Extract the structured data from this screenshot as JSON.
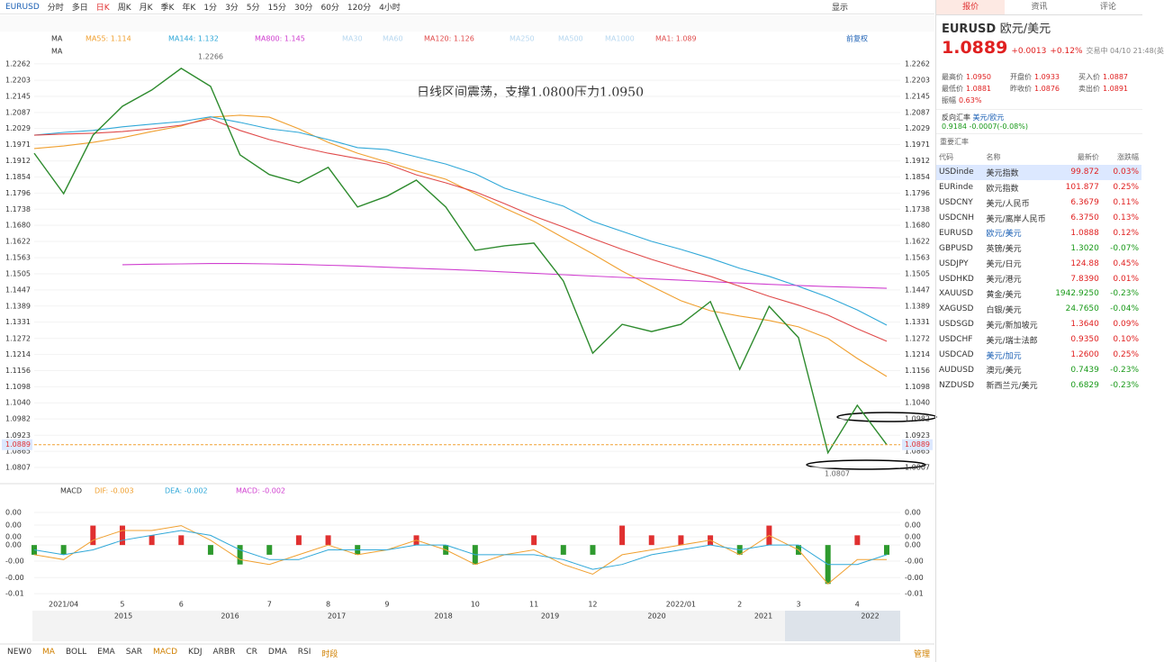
{
  "toolbar": {
    "symbol": "EURUSD",
    "periods": [
      "分时",
      "多日",
      "日K",
      "周K",
      "月K",
      "季K",
      "年K",
      "1分",
      "3分",
      "5分",
      "15分",
      "30分",
      "60分",
      "120分",
      "4小时"
    ],
    "display": "显示"
  },
  "chart_data": [
    {
      "type": "line",
      "indicator": "MA",
      "indicator2": "MA",
      "adjust": "前复权",
      "annotation": "日线区间震荡，支撑1.0800压力1.0950",
      "high_label": "1.2266",
      "low_label": "1.0807",
      "last_label": "1.0889",
      "inactive_legend": [
        "MA30",
        "MA60",
        "MA250",
        "MA500",
        "MA1000"
      ],
      "categories": [
        null,
        "2021/04",
        null,
        "5",
        null,
        "6",
        null,
        null,
        "7",
        null,
        "8",
        null,
        "9",
        null,
        null,
        "10",
        null,
        "11",
        null,
        "12",
        null,
        null,
        "2022/01",
        null,
        "2",
        null,
        "3",
        null,
        "4",
        null
      ],
      "ylim": [
        1.0755,
        1.2291
      ],
      "yticks": [
        1.2262,
        1.2203,
        1.2145,
        1.2087,
        1.2029,
        1.1971,
        1.1912,
        1.1854,
        1.1796,
        1.1738,
        {
          "value": 1.168,
          "label": "1.1680"
        },
        1.1622,
        1.1563,
        1.1505,
        1.1447,
        1.1389,
        1.1331,
        1.1272,
        1.1214,
        1.1156,
        1.1098,
        {
          "value": 1.104,
          "label": "1.1040"
        },
        1.0982,
        1.0923,
        1.0865,
        1.0807
      ],
      "series": [
        {
          "name": "MA1: 1.089",
          "color": "#2e8b2e",
          "values": [
            1.194,
            1.1794,
            1.2005,
            1.2109,
            1.2168,
            1.2246,
            1.2181,
            1.1934,
            1.1863,
            1.1833,
            1.1889,
            1.1746,
            1.1785,
            1.1843,
            1.1746,
            1.159,
            1.1606,
            1.1616,
            1.1479,
            1.1219,
            1.1323,
            1.1297,
            1.1323,
            1.1405,
            1.1161,
            1.1388,
            1.1275,
            1.086,
            1.1031,
            1.0889
          ]
        },
        {
          "name": "MA55: 1.114",
          "color": "#f0a030",
          "values": [
            1.1957,
            1.1966,
            1.1979,
            1.1996,
            1.2018,
            1.2038,
            1.207,
            1.2077,
            1.207,
            1.2028,
            1.1979,
            1.194,
            1.1908,
            1.1876,
            1.1846,
            1.1794,
            1.1742,
            1.1694,
            1.1635,
            1.1577,
            1.1515,
            1.146,
            1.1408,
            1.1372,
            1.1353,
            1.1337,
            1.1314,
            1.1272,
            1.12,
            1.1135
          ]
        },
        {
          "name": "MA144: 1.132",
          "color": "#30a8d8",
          "values": [
            1.2005,
            1.2015,
            1.2022,
            1.2035,
            1.2045,
            1.2054,
            1.2071,
            1.2051,
            1.2028,
            1.2015,
            1.1989,
            1.196,
            1.1953,
            1.1927,
            1.1901,
            1.1866,
            1.1814,
            1.1781,
            1.1749,
            1.1694,
            1.1658,
            1.1622,
            1.1593,
            1.1561,
            1.1525,
            1.1496,
            1.146,
            1.1421,
            1.1375,
            1.132
          ]
        },
        {
          "name": "MA800: 1.145",
          "color": "#d040d0",
          "values": [
            null,
            null,
            null,
            1.1538,
            1.154,
            1.1541,
            1.1542,
            1.1542,
            1.1541,
            1.1539,
            1.1536,
            1.1533,
            1.1529,
            1.1525,
            1.1521,
            1.1517,
            1.1512,
            1.1507,
            1.1502,
            1.1497,
            1.1492,
            1.1487,
            1.1482,
            1.1477,
            1.1472,
            1.1467,
            1.1463,
            1.1459,
            1.1456,
            1.1453
          ]
        },
        {
          "name": "MA120: 1.126",
          "color": "#e04a4a",
          "values": [
            1.2005,
            1.2009,
            1.2012,
            1.2018,
            1.2028,
            1.2041,
            1.2064,
            1.2022,
            1.1989,
            1.1963,
            1.194,
            1.1921,
            1.1901,
            1.1862,
            1.1833,
            1.1801,
            1.1758,
            1.1713,
            1.1674,
            1.1632,
            1.1593,
            1.1557,
            1.1525,
            1.1496,
            1.146,
            1.1424,
            1.1392,
            1.1356,
            1.1307,
            1.1262
          ]
        }
      ]
    },
    {
      "type": "combo",
      "indicator": "MACD",
      "ylim": [
        -0.0111,
        0.0093
      ],
      "yticks": [
        {
          "value": 0.0067,
          "label": "0.00"
        },
        {
          "value": 0.0041,
          "label": "0.00"
        },
        {
          "value": 0.0017,
          "label": "0.00"
        },
        {
          "value": 0,
          "label": "0.00"
        },
        {
          "value": -0.0033,
          "label": "-0.00"
        },
        {
          "value": -0.0067,
          "label": "-0.00"
        },
        {
          "value": -0.01,
          "label": "-0.01"
        }
      ],
      "series": [
        {
          "name": "DIF: -0.003",
          "kind": "line",
          "color": "#f0a030",
          "values": [
            -0.002,
            -0.003,
            0.001,
            0.003,
            0.003,
            0.004,
            0.001,
            -0.003,
            -0.004,
            -0.002,
            0,
            -0.002,
            -0.001,
            0.001,
            -0.001,
            -0.004,
            -0.002,
            -0.001,
            -0.004,
            -0.006,
            -0.002,
            -0.001,
            0,
            0.001,
            -0.002,
            0.002,
            -0.001,
            -0.008,
            -0.003,
            -0.003
          ]
        },
        {
          "name": "DEA: -0.002",
          "kind": "line",
          "color": "#30a8d8",
          "values": [
            -0.001,
            -0.002,
            -0.001,
            0.001,
            0.002,
            0.003,
            0.002,
            -0.001,
            -0.003,
            -0.003,
            -0.001,
            -0.001,
            -0.001,
            0,
            0,
            -0.002,
            -0.002,
            -0.002,
            -0.003,
            -0.005,
            -0.004,
            -0.002,
            -0.001,
            0,
            -0.001,
            0,
            0,
            -0.004,
            -0.004,
            -0.002
          ]
        },
        {
          "name": "MACD: -0.002",
          "kind": "bar",
          "color": "#d040d0",
          "up": "#e03030",
          "down": "#2e9a2e",
          "values": [
            -0.002,
            -0.002,
            0.004,
            0.004,
            0.002,
            0.002,
            -0.002,
            -0.004,
            -0.002,
            0.002,
            0.002,
            -0.002,
            0,
            0.002,
            -0.002,
            -0.004,
            0,
            0.002,
            -0.002,
            -0.002,
            0.004,
            0.002,
            0.002,
            0.002,
            -0.002,
            0.004,
            -0.002,
            -0.008,
            0.002,
            -0.002
          ]
        }
      ]
    }
  ],
  "navigator": {
    "years": [
      "2015",
      "2016",
      "2017",
      "2018",
      "2019",
      "2020",
      "2021",
      "2022"
    ]
  },
  "bottom_bar": {
    "items": [
      "NEW0",
      "MA",
      "BOLL",
      "EMA",
      "SAR",
      "MACD",
      "KDJ",
      "ARBR",
      "CR",
      "DMA",
      "RSI",
      "时段"
    ],
    "manage": "管理"
  },
  "panel": {
    "tabs": [
      "报价",
      "资讯",
      "评论"
    ],
    "code": "EURUSD",
    "name": "欧元/美元",
    "price": "1.0889",
    "change": "+0.0013",
    "pct": "+0.12%",
    "status": "交易中 04/10 21:48(英",
    "stats": [
      [
        "最高价",
        "1.0950"
      ],
      [
        "开盘价",
        "1.0933"
      ],
      [
        "买入价",
        "1.0887"
      ],
      [
        "最低价",
        "1.0881"
      ],
      [
        "昨收价",
        "1.0876"
      ],
      [
        "卖出价",
        "1.0891"
      ],
      [
        "振幅",
        "0.63%"
      ]
    ],
    "inverse_label": "反向汇率",
    "inverse_pair": "美元/欧元",
    "inverse_value": "0.9184",
    "inverse_change": "-0.0007(-0.08%)",
    "section": "重要汇率",
    "header": [
      "代码",
      "名称",
      "最新价",
      "涨跌幅"
    ],
    "rows": [
      [
        "USDinde",
        "美元指数",
        "99.872",
        "0.03%"
      ],
      [
        "EURinde",
        "欧元指数",
        "101.877",
        "0.25%"
      ],
      [
        "USDCNY",
        "美元/人民币",
        "6.3679",
        "0.11%"
      ],
      [
        "USDCNH",
        "美元/离岸人民币",
        "6.3750",
        "0.13%"
      ],
      [
        "EURUSD",
        "欧元/美元",
        "1.0888",
        "0.12%"
      ],
      [
        "GBPUSD",
        "英镑/美元",
        "1.3020",
        "-0.07%"
      ],
      [
        "USDJPY",
        "美元/日元",
        "124.88",
        "0.45%"
      ],
      [
        "USDHKD",
        "美元/港元",
        "7.8390",
        "0.01%"
      ],
      [
        "XAUUSD",
        "黄金/美元",
        "1942.9250",
        "-0.23%"
      ],
      [
        "XAGUSD",
        "白银/美元",
        "24.7650",
        "-0.04%"
      ],
      [
        "USDSGD",
        "美元/新加坡元",
        "1.3640",
        "0.09%"
      ],
      [
        "USDCHF",
        "美元/瑞士法郎",
        "0.9350",
        "0.10%"
      ],
      [
        "USDCAD",
        "美元/加元",
        "1.2600",
        "0.25%"
      ],
      [
        "AUDUSD",
        "澳元/美元",
        "0.7439",
        "-0.23%"
      ],
      [
        "NZDUSD",
        "新西兰元/美元",
        "0.6829",
        "-0.23%"
      ]
    ]
  }
}
